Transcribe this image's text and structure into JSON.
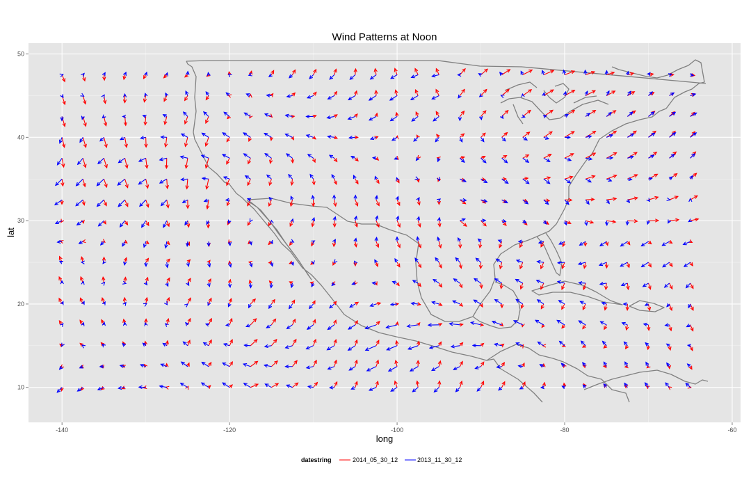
{
  "chart_data": {
    "type": "vector-field",
    "title": "Wind Patterns at Noon",
    "xlabel": "long",
    "ylabel": "lat",
    "xlim": [
      -144,
      -59
    ],
    "ylim": [
      5.8,
      51.3
    ],
    "x_ticks": [
      -140,
      -120,
      -100,
      -80,
      -60
    ],
    "y_ticks": [
      10,
      20,
      30,
      40,
      50
    ],
    "grid": true,
    "legend": {
      "position": "bottom",
      "title": "datestring",
      "entries": [
        {
          "name": "2014_05_30_12",
          "color": "#ff0000"
        },
        {
          "name": "2013_11_30_12",
          "color": "#0000ff"
        }
      ]
    },
    "grid_points": {
      "lon_start": -140,
      "lon_step": 2.5,
      "lon_count": 31,
      "lat_start": 10,
      "lat_step": 2.5,
      "lat_count": 16
    },
    "series": [
      {
        "name": "2014_05_30_12",
        "color": "#ff0000"
      },
      {
        "name": "2013_11_30_12",
        "color": "#0000ff"
      }
    ],
    "map_outline_color": "#808080"
  }
}
